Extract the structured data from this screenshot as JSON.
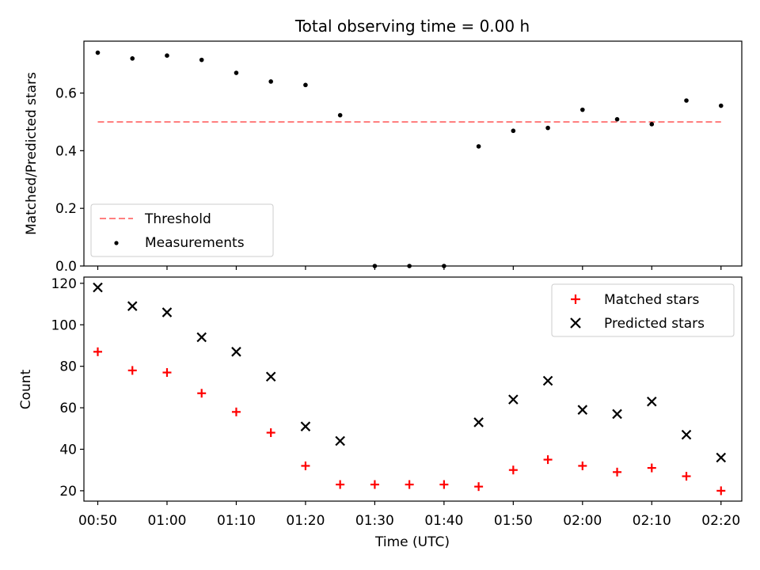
{
  "chart_data": [
    {
      "type": "scatter",
      "title": "Total observing time = 0.00 h",
      "xlabel": "",
      "ylabel": "Matched/Predicted stars",
      "ylim": [
        0.0,
        0.78
      ],
      "yticks": [
        "0.0",
        "0.2",
        "0.4",
        "0.6"
      ],
      "ytick_values": [
        0.0,
        0.2,
        0.4,
        0.6
      ],
      "xticks_labels_shown": false,
      "legend_position": "lower-left",
      "series": [
        {
          "name": "Threshold",
          "kind": "line",
          "style": "dashed",
          "color": "#ff7f7f",
          "x": [
            "00:50",
            "02:20"
          ],
          "y": [
            0.5,
            0.5
          ]
        },
        {
          "name": "Measurements",
          "kind": "scatter",
          "marker": "dot",
          "color": "#000000",
          "x": [
            "00:50",
            "00:55",
            "01:00",
            "01:05",
            "01:10",
            "01:15",
            "01:20",
            "01:25",
            "01:30",
            "01:35",
            "01:40",
            "01:45",
            "01:50",
            "01:55",
            "02:00",
            "02:05",
            "02:10",
            "02:15",
            "02:20"
          ],
          "y": [
            0.74,
            0.72,
            0.73,
            0.715,
            0.67,
            0.64,
            0.628,
            0.523,
            0.0,
            0.0,
            0.0,
            0.415,
            0.469,
            0.479,
            0.542,
            0.509,
            0.492,
            0.574,
            0.556
          ]
        }
      ]
    },
    {
      "type": "scatter",
      "title": "",
      "xlabel": "Time (UTC)",
      "ylabel": "Count",
      "ylim": [
        15,
        123
      ],
      "yticks": [
        "20",
        "40",
        "60",
        "80",
        "100",
        "120"
      ],
      "ytick_values": [
        20,
        40,
        60,
        80,
        100,
        120
      ],
      "xlim": [
        "00:48",
        "02:23"
      ],
      "xticks": [
        "00:50",
        "01:00",
        "01:10",
        "01:20",
        "01:30",
        "01:40",
        "01:50",
        "02:00",
        "02:10",
        "02:20"
      ],
      "legend_position": "upper-right",
      "series": [
        {
          "name": "Matched stars",
          "kind": "scatter",
          "marker": "plus",
          "color": "#ff0000",
          "x": [
            "00:50",
            "00:55",
            "01:00",
            "01:05",
            "01:10",
            "01:15",
            "01:20",
            "01:25",
            "01:30",
            "01:35",
            "01:40",
            "01:45",
            "01:50",
            "01:55",
            "02:00",
            "02:05",
            "02:10",
            "02:15",
            "02:20"
          ],
          "y": [
            87,
            78,
            77,
            67,
            58,
            48,
            32,
            23,
            23,
            23,
            23,
            22,
            30,
            35,
            32,
            29,
            31,
            27,
            20
          ]
        },
        {
          "name": "Predicted stars",
          "kind": "scatter",
          "marker": "x",
          "color": "#000000",
          "x": [
            "00:50",
            "00:55",
            "01:00",
            "01:05",
            "01:10",
            "01:15",
            "01:20",
            "01:25",
            "01:45",
            "01:50",
            "01:55",
            "02:00",
            "02:05",
            "02:10",
            "02:15",
            "02:20"
          ],
          "y": [
            118,
            109,
            106,
            94,
            87,
            75,
            51,
            44,
            53,
            64,
            73,
            59,
            57,
            63,
            47,
            36
          ]
        }
      ]
    }
  ]
}
